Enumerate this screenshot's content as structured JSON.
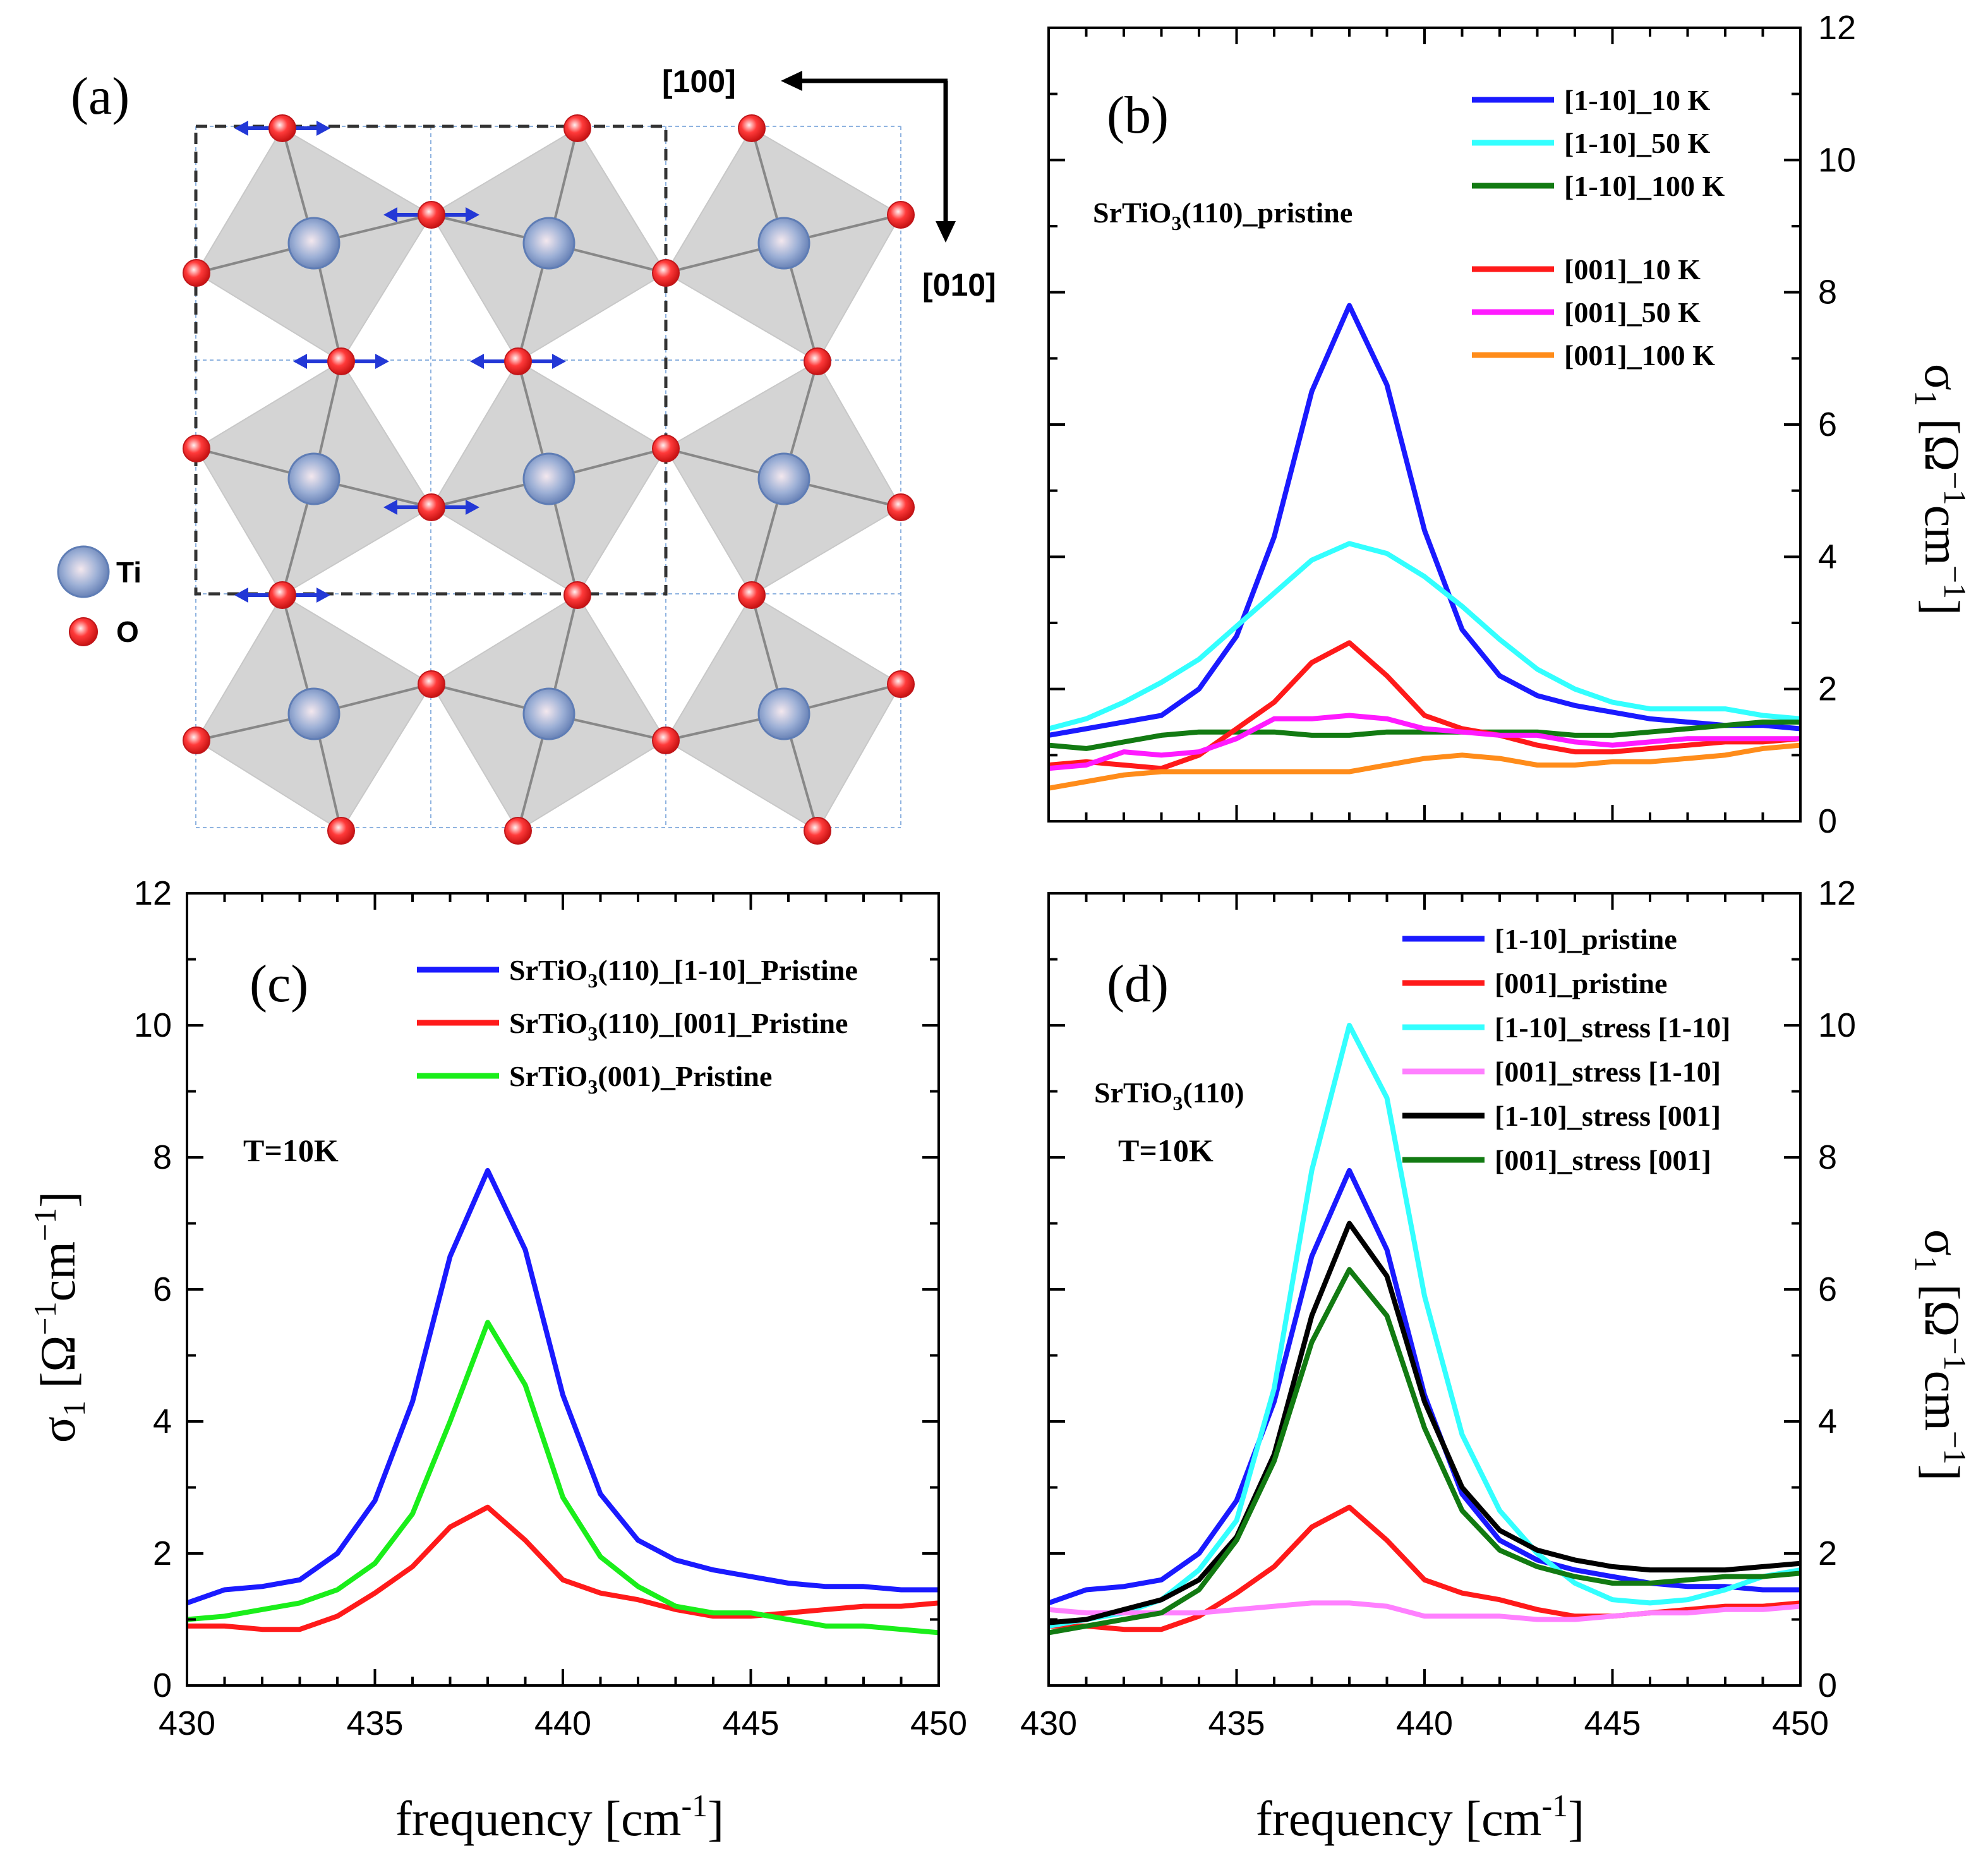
{
  "figure": {
    "unit_label": "σ",
    "unit_sub": "1",
    "unit_bracket_open": "[",
    "unit_bracket_close": "]",
    "unit_omega": "Ω",
    "unit_cm": "cm",
    "unit_exp": "−1",
    "xlabel": "frequency [cm",
    "xlabel_exp": "-1",
    "xlabel_close": "]"
  },
  "panel_a": {
    "label": "(a)",
    "dir_100": "[100]",
    "dir_010": "[010]",
    "legend_ti": "Ti",
    "legend_o": "O",
    "colors": {
      "octahedron": "#d4d4d4",
      "ti": "#7f97c7",
      "o": "#e8262a",
      "arrow": "#2338d6",
      "cell": "#333333",
      "grid": "#8fb3e0"
    }
  },
  "chart_data": [
    {
      "panel": "(b)",
      "type": "line",
      "annotation": "SrTiO",
      "annotation_sub": "3",
      "annotation_rest": "(110)_pristine",
      "xlim": [
        430,
        450
      ],
      "ylim": [
        0,
        12
      ],
      "yticks": [
        0,
        2,
        4,
        6,
        8,
        10,
        12
      ],
      "xticks": [
        430,
        435,
        440,
        445,
        450
      ],
      "yaxis_side": "right",
      "show_xticklabels": false,
      "x": [
        430,
        431,
        432,
        433,
        434,
        435,
        436,
        437,
        438,
        439,
        440,
        441,
        442,
        443,
        444,
        445,
        446,
        447,
        448,
        449,
        450
      ],
      "series": [
        {
          "name": "[1-10]_10 K",
          "color": "#1a1aff",
          "values": [
            1.3,
            1.4,
            1.5,
            1.6,
            2.0,
            2.8,
            4.3,
            6.5,
            7.8,
            6.6,
            4.4,
            2.9,
            2.2,
            1.9,
            1.75,
            1.65,
            1.55,
            1.5,
            1.45,
            1.45,
            1.4
          ]
        },
        {
          "name": "[1-10]_50 K",
          "color": "#33ffff",
          "values": [
            1.4,
            1.55,
            1.8,
            2.1,
            2.45,
            2.95,
            3.45,
            3.95,
            4.2,
            4.05,
            3.7,
            3.25,
            2.75,
            2.3,
            2.0,
            1.8,
            1.7,
            1.7,
            1.7,
            1.6,
            1.55
          ]
        },
        {
          "name": "[1-10]_100 K",
          "color": "#127a12",
          "values": [
            1.15,
            1.1,
            1.2,
            1.3,
            1.35,
            1.35,
            1.35,
            1.3,
            1.3,
            1.35,
            1.35,
            1.35,
            1.35,
            1.35,
            1.3,
            1.3,
            1.35,
            1.4,
            1.45,
            1.5,
            1.5
          ]
        },
        {
          "name": "[001]_10 K",
          "color": "#ff1a1a",
          "values": [
            0.85,
            0.9,
            0.85,
            0.8,
            1.0,
            1.4,
            1.8,
            2.4,
            2.7,
            2.2,
            1.6,
            1.4,
            1.3,
            1.15,
            1.05,
            1.05,
            1.1,
            1.15,
            1.2,
            1.2,
            1.25
          ]
        },
        {
          "name": "[001]_50 K",
          "color": "#ff1aff",
          "values": [
            0.8,
            0.85,
            1.05,
            1.0,
            1.05,
            1.25,
            1.55,
            1.55,
            1.6,
            1.55,
            1.4,
            1.35,
            1.3,
            1.3,
            1.2,
            1.15,
            1.2,
            1.25,
            1.25,
            1.25,
            1.25
          ]
        },
        {
          "name": "[001]_100 K",
          "color": "#ff8c1a",
          "values": [
            0.5,
            0.6,
            0.7,
            0.75,
            0.75,
            0.75,
            0.75,
            0.75,
            0.75,
            0.85,
            0.95,
            1.0,
            0.95,
            0.85,
            0.85,
            0.9,
            0.9,
            0.95,
            1.0,
            1.1,
            1.15
          ]
        }
      ]
    },
    {
      "panel": "(c)",
      "type": "line",
      "annotation": "T=10K",
      "xlim": [
        430,
        450
      ],
      "ylim": [
        0,
        12
      ],
      "yticks": [
        0,
        2,
        4,
        6,
        8,
        10,
        12
      ],
      "xticks": [
        430,
        435,
        440,
        445,
        450
      ],
      "yaxis_side": "left",
      "show_xticklabels": true,
      "x": [
        430,
        431,
        432,
        433,
        434,
        435,
        436,
        437,
        438,
        439,
        440,
        441,
        442,
        443,
        444,
        445,
        446,
        447,
        448,
        449,
        450
      ],
      "series": [
        {
          "name": "SrTiO3(110)_[1-10]_Pristine",
          "label_pre": "SrTiO",
          "label_sub": "3",
          "label_post": "(110)_[1-10]_Pristine",
          "color": "#1a1aff",
          "values": [
            1.25,
            1.45,
            1.5,
            1.6,
            2.0,
            2.8,
            4.3,
            6.5,
            7.8,
            6.6,
            4.4,
            2.9,
            2.2,
            1.9,
            1.75,
            1.65,
            1.55,
            1.5,
            1.5,
            1.45,
            1.45
          ]
        },
        {
          "name": "SrTiO3(110)_[001]_Pristine",
          "label_pre": "SrTiO",
          "label_sub": "3",
          "label_post": "(110)_[001]_Pristine",
          "color": "#ff1a1a",
          "values": [
            0.9,
            0.9,
            0.85,
            0.85,
            1.05,
            1.4,
            1.8,
            2.4,
            2.7,
            2.2,
            1.6,
            1.4,
            1.3,
            1.15,
            1.05,
            1.05,
            1.1,
            1.15,
            1.2,
            1.2,
            1.25
          ]
        },
        {
          "name": "SrTiO3(001)_Pristine",
          "label_pre": "SrTiO",
          "label_sub": "3",
          "label_post": "(001)_Pristine",
          "color": "#1aee1a",
          "values": [
            1.0,
            1.05,
            1.15,
            1.25,
            1.45,
            1.85,
            2.6,
            4.0,
            5.5,
            4.55,
            2.85,
            1.95,
            1.5,
            1.2,
            1.1,
            1.1,
            1.0,
            0.9,
            0.9,
            0.85,
            0.8
          ]
        }
      ]
    },
    {
      "panel": "(d)",
      "type": "line",
      "annotation": "SrTiO",
      "annotation_sub": "3",
      "annotation_rest": "(110)",
      "annotation2": "T=10K",
      "xlim": [
        430,
        450
      ],
      "ylim": [
        0,
        12
      ],
      "yticks": [
        0,
        2,
        4,
        6,
        8,
        10,
        12
      ],
      "xticks": [
        430,
        435,
        440,
        445,
        450
      ],
      "yaxis_side": "right",
      "show_xticklabels": true,
      "x": [
        430,
        431,
        432,
        433,
        434,
        435,
        436,
        437,
        438,
        439,
        440,
        441,
        442,
        443,
        444,
        445,
        446,
        447,
        448,
        449,
        450
      ],
      "series": [
        {
          "name": "[1-10]_pristine",
          "color": "#1a1aff",
          "values": [
            1.25,
            1.45,
            1.5,
            1.6,
            2.0,
            2.8,
            4.3,
            6.5,
            7.8,
            6.6,
            4.4,
            2.9,
            2.2,
            1.9,
            1.75,
            1.65,
            1.55,
            1.5,
            1.5,
            1.45,
            1.45
          ]
        },
        {
          "name": "[001]_pristine",
          "color": "#ff1a1a",
          "values": [
            0.9,
            0.9,
            0.85,
            0.85,
            1.05,
            1.4,
            1.8,
            2.4,
            2.7,
            2.2,
            1.6,
            1.4,
            1.3,
            1.15,
            1.05,
            1.05,
            1.1,
            1.15,
            1.2,
            1.2,
            1.25
          ]
        },
        {
          "name": "[1-10]_stress [1-10]",
          "color": "#33ffff",
          "values": [
            0.9,
            1.0,
            1.1,
            1.3,
            1.75,
            2.5,
            4.5,
            7.8,
            10.0,
            8.9,
            5.9,
            3.8,
            2.65,
            2.0,
            1.55,
            1.3,
            1.25,
            1.3,
            1.45,
            1.65,
            1.75
          ]
        },
        {
          "name": "[001]_stress [1-10]",
          "color": "#ff80ff",
          "values": [
            1.15,
            1.1,
            1.1,
            1.1,
            1.1,
            1.15,
            1.2,
            1.25,
            1.25,
            1.2,
            1.05,
            1.05,
            1.05,
            1.0,
            1.0,
            1.05,
            1.1,
            1.1,
            1.15,
            1.15,
            1.2
          ]
        },
        {
          "name": "[1-10]_stress [001]",
          "color": "#000000",
          "values": [
            0.95,
            1.0,
            1.15,
            1.3,
            1.6,
            2.25,
            3.5,
            5.6,
            7.0,
            6.2,
            4.3,
            3.0,
            2.35,
            2.05,
            1.9,
            1.8,
            1.75,
            1.75,
            1.75,
            1.8,
            1.85
          ]
        },
        {
          "name": "[001]_stress [001]",
          "color": "#127a12",
          "values": [
            0.8,
            0.9,
            1.0,
            1.1,
            1.45,
            2.2,
            3.4,
            5.2,
            6.3,
            5.6,
            3.9,
            2.65,
            2.05,
            1.8,
            1.65,
            1.55,
            1.55,
            1.6,
            1.65,
            1.65,
            1.7
          ]
        }
      ]
    }
  ]
}
